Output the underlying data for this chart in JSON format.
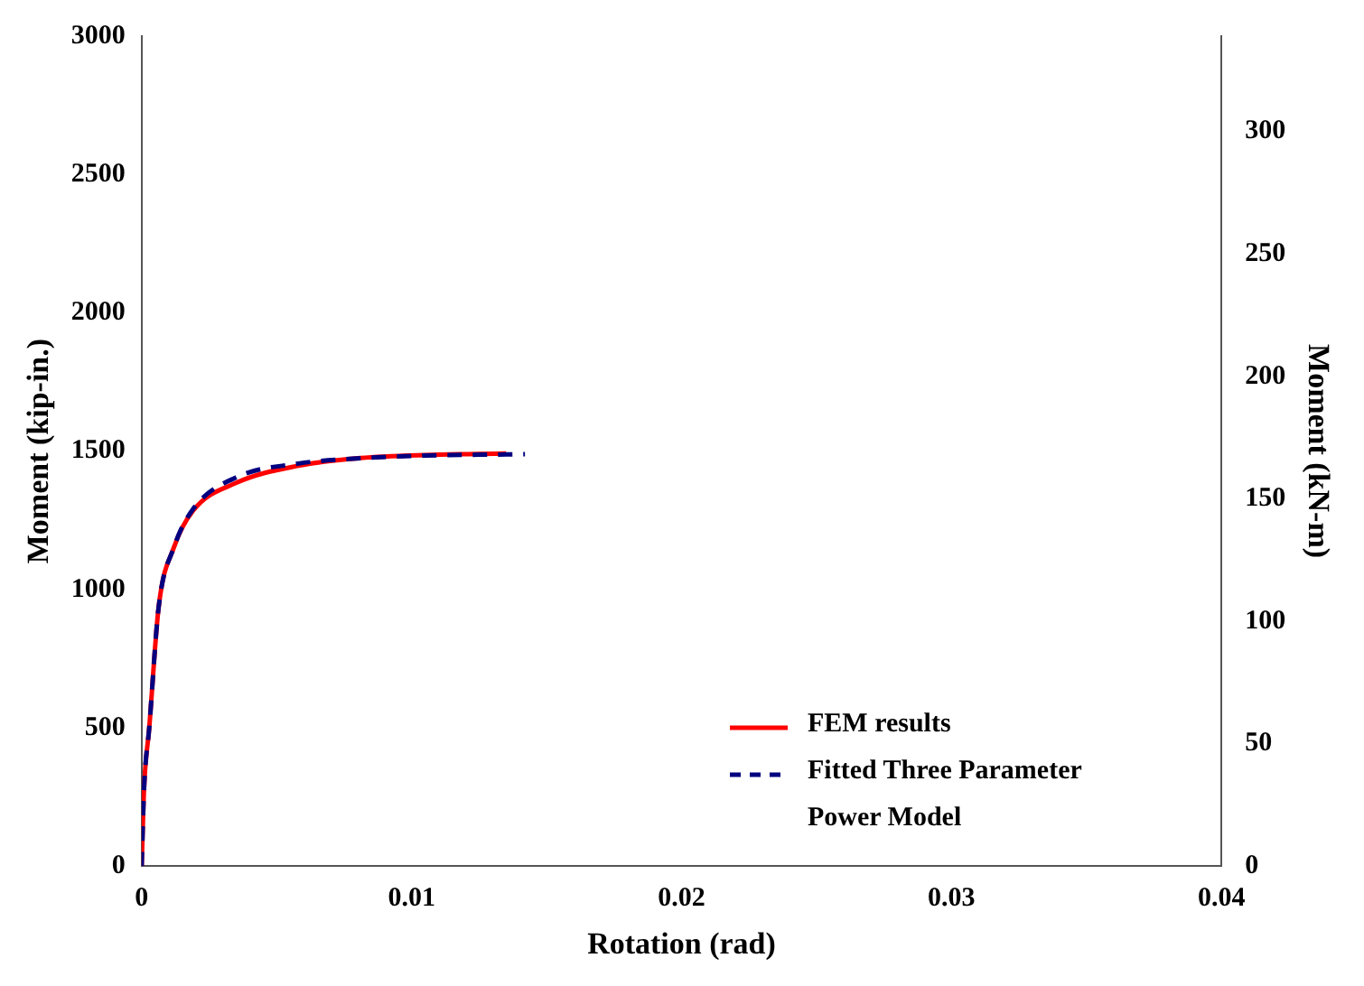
{
  "chart_data": {
    "type": "line",
    "xlabel": "Rotation (rad)",
    "ylabel": "Moment (kip-in.)",
    "y2label": "Moment (kN-m)",
    "xlim": [
      0,
      0.04
    ],
    "xticks": [
      0,
      0.01,
      0.02,
      0.03,
      0.04
    ],
    "ylim": [
      0,
      3000
    ],
    "yticks": [
      0,
      500,
      1000,
      1500,
      2000,
      2500,
      3000
    ],
    "y2lim": [
      0,
      339
    ],
    "y2ticks": [
      0,
      50,
      100,
      150,
      200,
      250,
      300
    ],
    "grid": false,
    "legend": "bottom right",
    "marker": "none",
    "series": [
      {
        "name": "FEM results",
        "color": "#ff0000",
        "line_style": "solid",
        "x": [
          0,
          9e-05,
          0.00028,
          0.00063,
          0.0012,
          0.0019,
          0.0035,
          0.0058,
          0.0081,
          0.0105,
          0.0135
        ],
        "values": [
          0,
          282,
          498,
          936,
          1153,
          1284,
          1385,
          1447,
          1475,
          1486,
          1491
        ]
      },
      {
        "name": "Fitted Three Parameter Power Model",
        "color": "#000080",
        "line_style": "dashed",
        "x": [
          0,
          9e-05,
          0.00028,
          0.00063,
          0.0012,
          0.0019,
          0.0035,
          0.0058,
          0.0081,
          0.0105,
          0.0135,
          0.0142
        ],
        "values": [
          0,
          282,
          498,
          936,
          1153,
          1290,
          1405,
          1455,
          1474,
          1484,
          1488,
          1489
        ]
      }
    ]
  }
}
